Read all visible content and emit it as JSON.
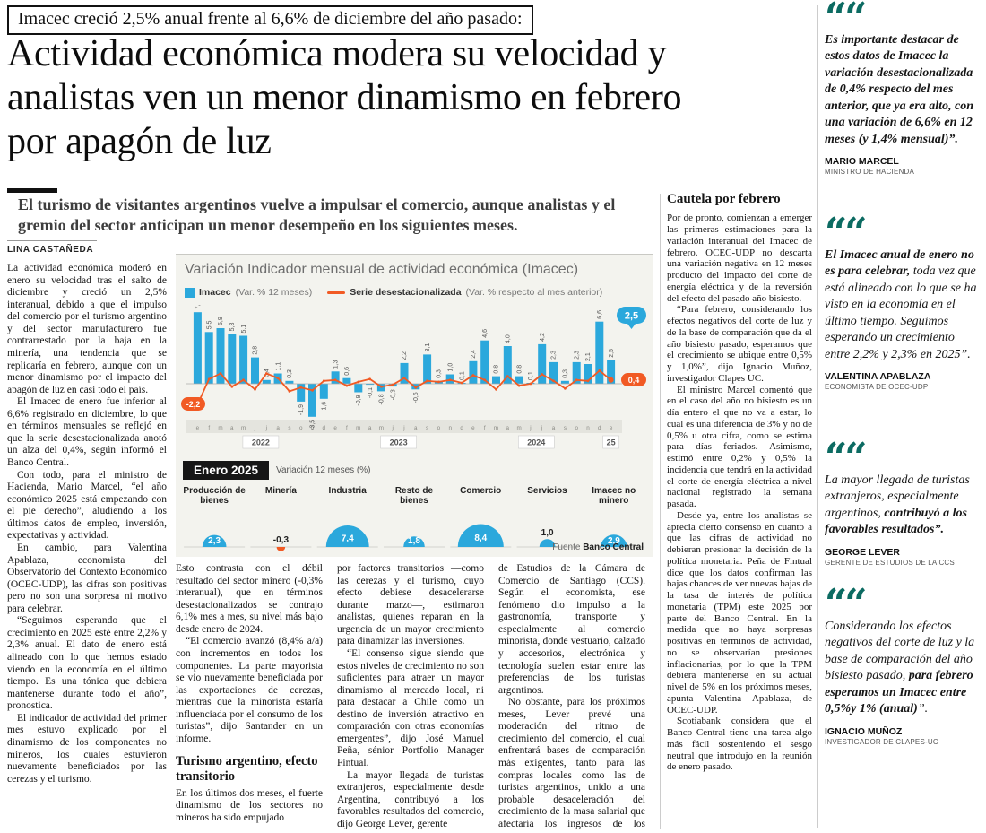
{
  "colors": {
    "bar_blue": "#2BA8DC",
    "line_orange": "#F15A24",
    "quote_teal": "#0C6B62",
    "highlight_black": "#161616"
  },
  "kicker": "Imacec creció 2,5% anual frente al 6,6% de diciembre del año pasado:",
  "headline": "Actividad económica modera su velocidad y analistas ven un menor dinamismo en febrero por apagón de luz",
  "deck": "El turismo de visitantes argentinos vuelve a impulsar el comercio, aunque analistas y el gremio del sector anticipan un menor desempeño en los siguientes meses.",
  "byline": "LINA CASTAÑEDA",
  "columns": {
    "col1": [
      "La actividad económica moderó en enero su velocidad tras el salto de diciembre y creció un 2,5% interanual, debido a que el impulso del comercio por el turismo argentino y del sector manufacturero fue contrarrestado por la baja en la minería, una tendencia que se replicaría en febrero, aunque con un menor dinamismo por el impacto del apagón de luz en casi todo el país.",
      "El Imacec de enero fue inferior al 6,6% registrado en diciembre, lo que en términos mensuales se reflejó en que la serie desestacionalizada anotó un alza del 0,4%, según informó el Banco Central.",
      "Con todo, para el ministro de Hacienda, Mario Marcel, “el año económico 2025 está empezando con el pie derecho”, aludiendo a los últimos datos de empleo, inversión, expectativas y actividad.",
      "En cambio, para Valentina Apablaza, economista del Observatorio del Contexto Económico (OCEC-UDP), las cifras son positivas pero no son una sorpresa ni motivo para celebrar.",
      "“Seguimos esperando que el crecimiento en 2025 esté entre 2,2% y 2,3% anual. El dato de enero está alineado con lo que hemos estado viendo en la economía en el último tiempo. Es una tónica que debiera mantenerse durante todo el año”, pronostica.",
      "El indicador de actividad del primer mes estuvo explicado por el dinamismo de los componentes no mineros, los cuales estuvieron nuevamente beneficiados por las cerezas y el turismo."
    ],
    "col2_pre": [
      "Esto contrasta con el débil resultado del sector minero (-0,3% interanual), que en términos desestacionalizados se contrajo 6,1% mes a mes, su nivel más bajo desde enero de 2024.",
      "“El comercio avanzó (8,4% a/a) con incrementos en todos los componentes. La parte mayorista se vio nuevamente beneficiada por las exportaciones de cerezas, mientras que la minorista estaría influenciada por el consumo de los turistas”, dijo Santander en un informe."
    ],
    "col2_heading": "Turismo argentino, efecto transitorio",
    "col2_post": [
      "En los últimos dos meses, el fuerte dinamismo de los sectores no mineros ha sido empujado"
    ],
    "col3": [
      "por factores transitorios —como las cerezas y el turismo, cuyo efecto debiese desacelerarse durante marzo—, estimaron analistas, quienes reparan en la urgencia de un mayor crecimiento para dinamizar las inversiones.",
      "“El consenso sigue siendo que estos niveles de crecimiento no son suficientes para atraer un mayor dinamismo al mercado local, ni para destacar a Chile como un destino de inversión atractivo en comparación con otras economías emergentes”, dijo José Manuel Peña, sénior Portfolio Manager Fintual.",
      "La mayor llegada de turistas extranjeros, especialmente desde Argentina, contribuyó a los favorables resultados del comercio, dijo George Lever, gerente"
    ],
    "col4": [
      "de Estudios de la Cámara de Comercio de Santiago (CCS). Según el economista, ese fenómeno dio impulso a la gastronomía, transporte y especialmente al comercio minorista, donde vestuario, calzado y accesorios, electrónica y tecnología suelen estar entre las preferencias de los turistas argentinos.",
      "No obstante, para los próximos meses, Lever prevé una moderación del ritmo de crecimiento del comercio, el cual enfrentará bases de comparación más exigentes, tanto para las compras locales como las de turistas argentinos, unido a una probable desaceleración del crecimiento de la masa salarial que afectaría los ingresos de los hogares."
    ],
    "col5_heading": "Cautela por febrero",
    "col5": [
      "Por de pronto, comienzan a emerger las primeras estimaciones para la variación interanual del Imacec de febrero. OCEC-UDP no descarta una variación negativa en 12 meses producto del impacto del corte de energía eléctrica y de la reversión del efecto del pasado año bisiesto.",
      "“Para febrero, considerando los efectos negativos del corte de luz y de la base de comparación que da el año bisiesto pasado, esperamos que el crecimiento se ubique entre 0,5% y 1,0%”, dijo Ignacio Muñoz, investigador Clapes UC.",
      "El ministro Marcel comentó que en el caso del año no bisiesto es un día entero el que no va a estar, lo cual es una diferencia de 3% y no de 0,5% u otra cifra, como se estima para días feriados. Asimismo, estimó entre 0,2% y 0,5% la incidencia que tendrá en la actividad el corte de energía eléctrica a nivel nacional registrado la semana pasada.",
      "Desde ya, entre los analistas se aprecia cierto consenso en cuanto a que las cifras de actividad no debieran presionar la decisión de la política monetaria. Peña de Fintual dice que los datos confirman las bajas chances de ver nuevas bajas de la tasa de interés de política monetaria (TPM) este 2025 por parte del Banco Central. En la medida que no haya sorpresas positivas en términos de actividad, no se observarían presiones inflacionarias, por lo que la TPM debiera mantenerse en su actual nivel de 5% en los próximos meses, apunta Valentina Apablaza, de OCEC-UDP.",
      "Scotiabank considera que el Banco Central tiene una tarea algo más fácil sosteniendo el sesgo neutral que introdujo en la reunión de enero pasado."
    ]
  },
  "chart_data": {
    "type": "bar",
    "title": "Variación Indicador mensual de actividad económica (Imacec)",
    "legend": [
      {
        "name": "Imacec",
        "note": "(Var. % 12 meses)",
        "color": "#2BA8DC"
      },
      {
        "name": "Serie desestacionalizada",
        "note": "(Var. % respecto al mes anterior)",
        "color": "#F15A24"
      }
    ],
    "month_letters": [
      "e",
      "f",
      "m",
      "a",
      "m",
      "j",
      "j",
      "a",
      "s",
      "o",
      "n",
      "d"
    ],
    "years": [
      "2022",
      "2023",
      "2024",
      "25"
    ],
    "ylim": [
      -4,
      8
    ],
    "series": [
      {
        "name": "Imacec (Var. % 12 meses)",
        "type": "bar",
        "color": "#2BA8DC",
        "values": [
          7.6,
          5.5,
          5.9,
          5.3,
          5.1,
          2.8,
          0.4,
          1.1,
          0.3,
          -1.9,
          -3.5,
          -1.6,
          1.3,
          0.6,
          -0.9,
          -0.1,
          -0.8,
          -0.3,
          2.2,
          -0.6,
          3.1,
          0.3,
          1.0,
          0.1,
          2.4,
          4.6,
          0.8,
          4.0,
          0.8,
          0.1,
          4.2,
          2.3,
          0.3,
          2.3,
          2.1,
          6.6,
          2.5
        ]
      },
      {
        "name": "Serie desestacionalizada (Var. % respecto al mes anterior)",
        "type": "line",
        "color": "#F15A24",
        "values": [
          -2.2,
          0.5,
          1.1,
          -0.3,
          0.4,
          -0.6,
          1.1,
          0.6,
          -0.8,
          -0.4,
          -0.7,
          0.3,
          0.4,
          -0.2,
          0.2,
          0.5,
          -0.3,
          -0.1,
          0.6,
          -0.4,
          0.3,
          0.2,
          0.4,
          0.1,
          0.9,
          0.4,
          -0.6,
          0.8,
          -0.2,
          0.0,
          1.0,
          0.3,
          -0.5,
          0.4,
          0.3,
          1.4,
          0.4
        ]
      }
    ],
    "badges": {
      "line_start": "-2,2",
      "line_end": "0,4",
      "bar_last": "2,5"
    },
    "inset": {
      "label": "Enero 2025",
      "sub": "Variación 12 meses (%)",
      "sectors": [
        {
          "name": "Producción de bienes",
          "value": 2.3
        },
        {
          "name": "Minería",
          "value": -0.3
        },
        {
          "name": "Industria",
          "value": 7.4
        },
        {
          "name": "Resto de bienes",
          "value": 1.8
        },
        {
          "name": "Comercio",
          "value": 8.4
        },
        {
          "name": "Servicios",
          "value": 1.0
        },
        {
          "name": "Imacec no minero",
          "value": 2.9
        }
      ]
    },
    "source_label": "Fuente",
    "source": "Banco Central"
  },
  "quotes": [
    {
      "segments": [
        {
          "text": "Es importante destacar de estos datos de Imacec la variación desestacionalizada de 0,4% respecto del mes anterior, que ya era alto, con una variación de 6,6% en 12 meses (y 1,4% mensual)”.",
          "bold": true
        }
      ],
      "name": "MARIO MARCEL",
      "role": "MINISTRO DE HACIENDA"
    },
    {
      "segments": [
        {
          "text": "El Imacec anual de enero no es para celebrar, ",
          "bold": true
        },
        {
          "text": "toda vez que está alineado con lo que se ha visto en la economía en el último tiempo. Seguimos esperando un crecimiento entre 2,2% y 2,3% en 2025”.",
          "bold": false
        }
      ],
      "name": "VALENTINA APABLAZA",
      "role": "ECONOMISTA DE OCEC-UDP"
    },
    {
      "segments": [
        {
          "text": "La mayor llegada de turistas extranjeros, especialmente argentinos, ",
          "bold": false
        },
        {
          "text": "contribuyó a los favorables resultados”.",
          "bold": true
        }
      ],
      "name": "GEORGE LEVER",
      "role": "GERENTE DE ESTUDIOS DE LA CCS"
    },
    {
      "segments": [
        {
          "text": "Considerando los efectos negativos del corte de luz y la base de comparación del año bisiesto pasado, ",
          "bold": false
        },
        {
          "text": "para febrero esperamos un Imacec entre 0,5%y 1% (anual)",
          "bold": true
        },
        {
          "text": "”.",
          "bold": false
        }
      ],
      "name": "IGNACIO MUÑOZ",
      "role": "INVESTIGADOR DE CLAPES-UC"
    }
  ]
}
